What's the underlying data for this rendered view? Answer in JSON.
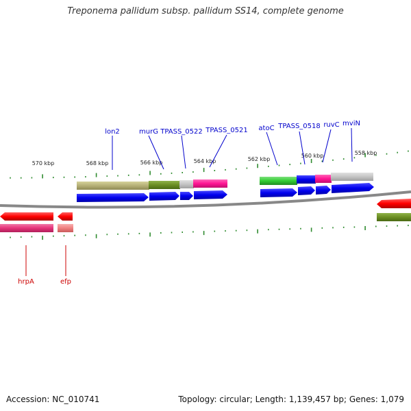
{
  "title": "Treponema pallidum subsp. pallidum SS14, complete genome",
  "accession": "Accession: NC_010741",
  "summary": "Topology: circular; Length: 1,139,457 bp; Genes: 1,079",
  "scale_labels": [
    "570 kbp",
    "568 kbp",
    "566 kbp",
    "564 kbp",
    "562 kbp",
    "560 kbp",
    "558 kbp"
  ],
  "gene_labels_top": [
    "lon2",
    "murG",
    "TPASS_0522",
    "TPASS_0521",
    "atoC",
    "TPASS_0518",
    "ruvC",
    "mviN"
  ],
  "gene_labels_bottom": [
    "hrpA",
    "efp"
  ],
  "colors": {
    "label_top": "#0000cc",
    "label_bottom": "#cc0000",
    "tick": "#2e8b2e",
    "backbone": "#808080",
    "cds": "#0000ee",
    "olive": "#b5b077",
    "olive_dark": "#6b8e23",
    "magenta": "#ff1493",
    "grey": "#c0c0c0",
    "green": "#32cd32",
    "red": "#ff0000",
    "pink": "#e6337a",
    "salmon": "#f08080"
  }
}
